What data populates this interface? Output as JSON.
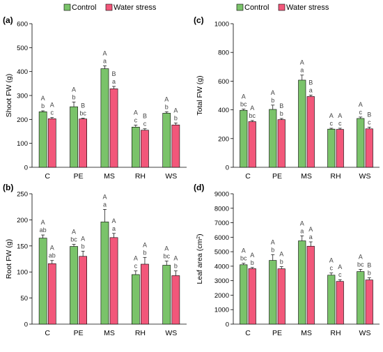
{
  "legend": {
    "items": [
      {
        "label": "Control",
        "color": "#7AC36A"
      },
      {
        "label": "Water stress",
        "color": "#F2577A"
      }
    ]
  },
  "chart_data": [
    {
      "panel_label": "(a)",
      "type": "bar",
      "ylabel_text": "Shoot FW (g)",
      "ylim": [
        0,
        600
      ],
      "yticks": [
        "0",
        "100",
        "200",
        "300",
        "400",
        "500",
        "600"
      ],
      "categories": [
        "C",
        "PE",
        "MS",
        "RH",
        "WS"
      ],
      "series": [
        {
          "name": "Control",
          "values": [
            232,
            253,
            412,
            168,
            226
          ],
          "errors": [
            4,
            20,
            12,
            8,
            6
          ],
          "letters_upper": [
            "A",
            "A",
            "A",
            "A",
            "A"
          ],
          "letters_lower": [
            "b",
            "b",
            "a",
            "c",
            "b"
          ]
        },
        {
          "name": "Water stress",
          "values": [
            203,
            202,
            328,
            155,
            177
          ],
          "errors": [
            5,
            3,
            10,
            6,
            8
          ],
          "letters_upper": [
            "A",
            "B",
            "B",
            "B",
            "A"
          ],
          "letters_lower": [
            "c",
            "bc",
            "a",
            "c",
            "b"
          ]
        }
      ]
    },
    {
      "panel_label": "(c)",
      "type": "bar",
      "ylabel_text": "Total FW (g)",
      "ylim": [
        0,
        1000
      ],
      "yticks": [
        "0",
        "200",
        "400",
        "600",
        "800",
        "1000"
      ],
      "categories": [
        "C",
        "PE",
        "MS",
        "RH",
        "WS"
      ],
      "series": [
        {
          "name": "Control",
          "values": [
            397,
            403,
            607,
            266,
            340
          ],
          "errors": [
            8,
            30,
            35,
            6,
            10
          ],
          "letters_upper": [
            "A",
            "A",
            "A",
            "A",
            "A"
          ],
          "letters_lower": [
            "bc",
            "b",
            "a",
            "c",
            "c"
          ]
        },
        {
          "name": "Water stress",
          "values": [
            318,
            332,
            493,
            264,
            268
          ],
          "errors": [
            8,
            8,
            10,
            8,
            12
          ],
          "letters_upper": [
            "A",
            "B",
            "B",
            "A",
            "B"
          ],
          "letters_lower": [
            "bc",
            "b",
            "a",
            "c",
            "c"
          ]
        }
      ]
    },
    {
      "panel_label": "(b)",
      "type": "bar",
      "ylabel_text": "Root FW (g)",
      "ylim": [
        0,
        250
      ],
      "yticks": [
        "0",
        "50",
        "100",
        "150",
        "200",
        "250"
      ],
      "categories": [
        "C",
        "PE",
        "MS",
        "RH",
        "WS"
      ],
      "series": [
        {
          "name": "Control",
          "values": [
            165,
            149,
            196,
            95,
            113
          ],
          "errors": [
            6,
            4,
            24,
            7,
            8
          ],
          "letters_upper": [
            "A",
            "A",
            "A",
            "A",
            "A"
          ],
          "letters_lower": [
            "ab",
            "bc",
            "a",
            "c",
            "bc"
          ]
        },
        {
          "name": "Water stress",
          "values": [
            116,
            130,
            166,
            115,
            93
          ],
          "errors": [
            6,
            10,
            8,
            13,
            9
          ],
          "letters_upper": [
            "A",
            "A",
            "A",
            "A",
            "A"
          ],
          "letters_lower": [
            "ab",
            "b",
            "a",
            "b",
            "b"
          ]
        }
      ]
    },
    {
      "panel_label": "(d)",
      "type": "bar",
      "ylabel_text": "Leaf area (cm",
      "ylabel_sup": "2",
      "ylabel_close": ")",
      "ylim": [
        0,
        9000
      ],
      "yticks": [
        "0",
        "1000",
        "2000",
        "3000",
        "4000",
        "5000",
        "6000",
        "7000",
        "8000",
        "9000"
      ],
      "categories": [
        "C",
        "PE",
        "MS",
        "RH",
        "WS"
      ],
      "series": [
        {
          "name": "Control",
          "values": [
            4100,
            4400,
            5750,
            3380,
            3630
          ],
          "errors": [
            100,
            400,
            350,
            150,
            150
          ],
          "letters_upper": [
            "A",
            "A",
            "A",
            "A",
            "A"
          ],
          "letters_lower": [
            "bc",
            "b",
            "a",
            "c",
            "bc"
          ]
        },
        {
          "name": "Water stress",
          "values": [
            3830,
            3820,
            5380,
            2950,
            3050
          ],
          "errors": [
            80,
            150,
            300,
            120,
            150
          ],
          "letters_upper": [
            "A",
            "A",
            "A",
            "A",
            "B"
          ],
          "letters_lower": [
            "b",
            "b",
            "a",
            "c",
            "b"
          ]
        }
      ]
    }
  ]
}
